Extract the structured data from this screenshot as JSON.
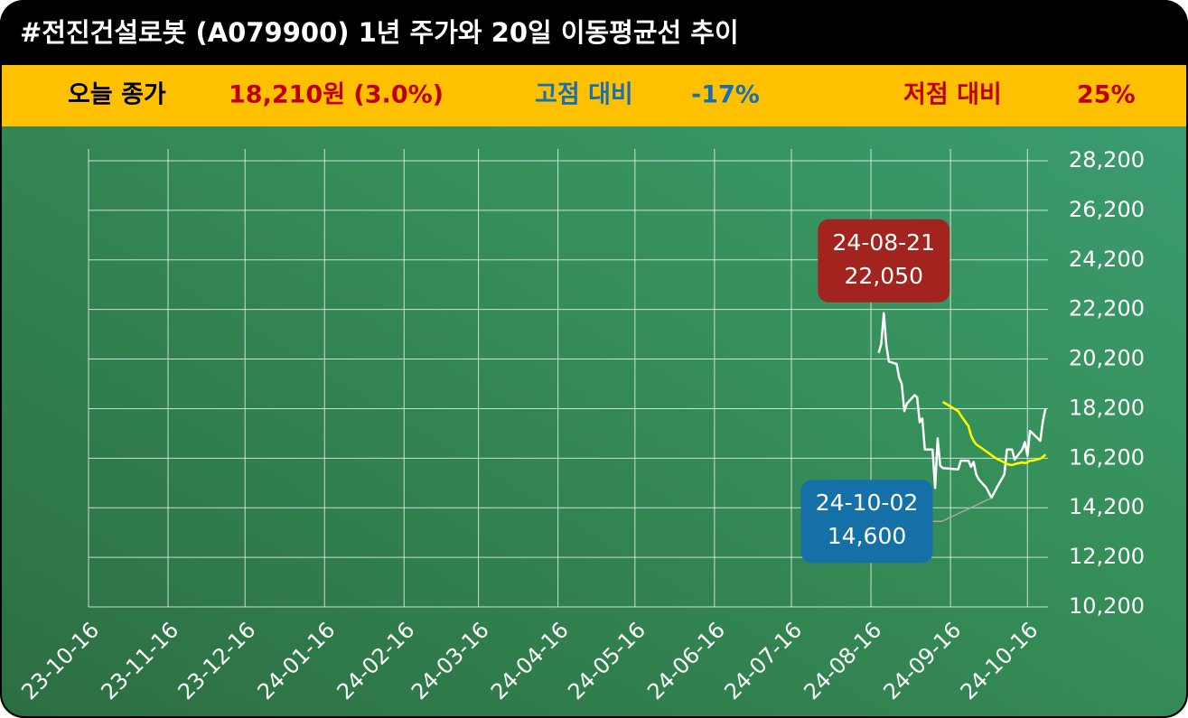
{
  "header": {
    "title": "#전진건설로봇 (A079900) 1년 주가와 20일 이동평균선 추이",
    "close_label": "오늘 종가",
    "close_value": "18,210원 (3.0%)",
    "high_label": "고점 대비",
    "high_value": "-17%",
    "low_label": "저점 대비",
    "low_value": "25%"
  },
  "chart_data": {
    "type": "line",
    "x": [
      "24-08-19",
      "24-08-20",
      "24-08-21",
      "24-08-22",
      "24-08-23",
      "24-08-26",
      "24-08-27",
      "24-08-28",
      "24-08-29",
      "24-08-30",
      "24-09-02",
      "24-09-03",
      "24-09-04",
      "24-09-05",
      "24-09-06",
      "24-09-09",
      "24-09-10",
      "24-09-11",
      "24-09-12",
      "24-09-13",
      "24-09-19",
      "24-09-20",
      "24-09-23",
      "24-09-24",
      "24-09-25",
      "24-09-26",
      "24-09-27",
      "24-09-30",
      "24-10-02",
      "24-10-04",
      "24-10-07",
      "24-10-08",
      "24-10-10",
      "24-10-11",
      "24-10-14",
      "24-10-15",
      "24-10-16",
      "24-10-17",
      "24-10-18",
      "24-10-21",
      "24-10-22",
      "24-10-23"
    ],
    "series": [
      {
        "color": "#ffffff",
        "values": [
          20450,
          20800,
          22050,
          20750,
          20100,
          20000,
          19450,
          19200,
          18100,
          18400,
          18750,
          18650,
          17650,
          17800,
          16550,
          16550,
          15000,
          17000,
          15900,
          15800,
          15750,
          16100,
          16100,
          15850,
          16050,
          15550,
          15350,
          15000,
          14600,
          15000,
          15550,
          16550,
          16550,
          16150,
          16550,
          16850,
          16300,
          17300,
          17200,
          16900,
          17680,
          18210
        ]
      },
      {
        "color": "#ffff00",
        "values": [
          null,
          null,
          null,
          null,
          null,
          null,
          null,
          null,
          null,
          null,
          null,
          null,
          null,
          null,
          null,
          null,
          null,
          null,
          null,
          18470,
          18100,
          17930,
          17490,
          17120,
          16900,
          16760,
          16690,
          16470,
          16320,
          16180,
          16030,
          15960,
          15920,
          15960,
          16030,
          16000,
          16030,
          16100,
          16100,
          16180,
          16250,
          16350
        ]
      }
    ],
    "xlim": [
      "23-10-16",
      "24-10-24"
    ],
    "xticks": [
      "23-10-16",
      "23-11-16",
      "23-12-16",
      "24-01-16",
      "24-02-16",
      "24-03-16",
      "24-04-16",
      "24-05-16",
      "24-06-16",
      "24-07-16",
      "24-08-16",
      "24-09-16",
      "24-10-16"
    ],
    "ylim": [
      10200,
      28200
    ],
    "yticks": [
      {
        "value": 10200,
        "label": "10,200"
      },
      {
        "value": 12200,
        "label": "12,200"
      },
      {
        "value": 14200,
        "label": "14,200"
      },
      {
        "value": 16200,
        "label": "16,200"
      },
      {
        "value": 18200,
        "label": "18,200"
      },
      {
        "value": 20200,
        "label": "20,200"
      },
      {
        "value": 22200,
        "label": "22,200"
      },
      {
        "value": 24200,
        "label": "24,200"
      },
      {
        "value": 26200,
        "label": "26,200"
      },
      {
        "value": 28200,
        "label": "28,200"
      }
    ],
    "grid": true,
    "annotations": [
      {
        "x": "24-08-21",
        "value": 22050,
        "label": "22,050",
        "color": "#a3241f"
      },
      {
        "x": "24-10-02",
        "value": 14600,
        "label": "14,600",
        "color": "#1670a8"
      }
    ]
  }
}
